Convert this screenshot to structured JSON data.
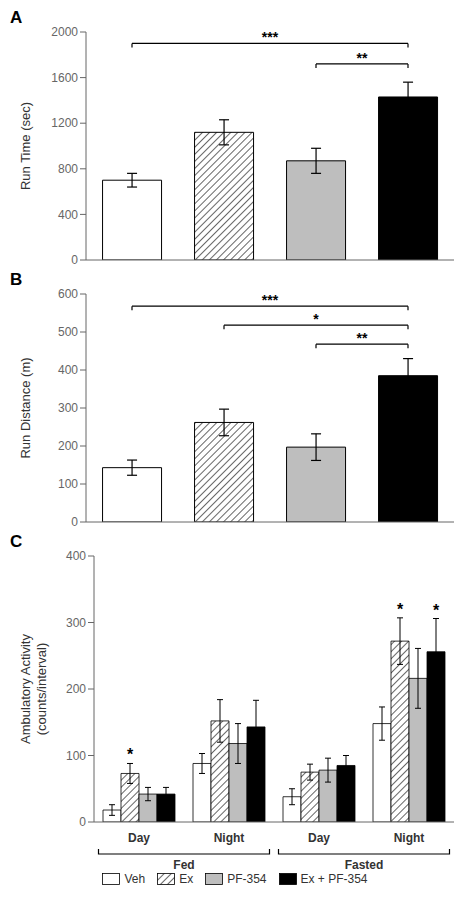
{
  "chart_data": [
    {
      "type": "bar",
      "title": "A",
      "y_label": "Run Time (sec)",
      "categories": [
        null,
        null,
        null,
        null
      ],
      "values": [
        700,
        1120,
        870,
        1430
      ],
      "errors": [
        60,
        110,
        110,
        130
      ],
      "colors": [
        "white",
        "white",
        "#bebebe",
        "black"
      ],
      "ylim": [
        0,
        2000
      ],
      "yticks": [
        0,
        400,
        800,
        1200,
        1600,
        2000
      ],
      "grid": false,
      "tick_labels": "y",
      "annotations": [
        {
          "text": "***",
          "x": [
            0,
            3
          ],
          "y": 1900
        },
        {
          "text": "**",
          "x": [
            2,
            3
          ],
          "y": 1720
        }
      ]
    },
    {
      "type": "bar",
      "title": "B",
      "y_label": "Run Distance (m)",
      "categories": [
        null,
        null,
        null,
        null
      ],
      "values": [
        143,
        262,
        197,
        385
      ],
      "errors": [
        20,
        35,
        35,
        45
      ],
      "colors": [
        "white",
        "white",
        "#bebebe",
        "black"
      ],
      "ylim": [
        0,
        600
      ],
      "yticks": [
        0,
        100,
        200,
        300,
        400,
        500,
        600
      ],
      "grid": false,
      "tick_labels": "y",
      "annotations": [
        {
          "text": "***",
          "x": [
            0,
            3
          ],
          "y": 568
        },
        {
          "text": "*",
          "x": [
            1,
            3
          ],
          "y": 518
        },
        {
          "text": "**",
          "x": [
            2,
            3
          ],
          "y": 468
        }
      ]
    },
    {
      "type": "bar",
      "title": "C",
      "y_label": "Ambulatory Activity\n(counts/interval)",
      "categories": [
        "Day",
        "Night",
        "Day",
        "Night"
      ],
      "series": [
        {
          "name": "Veh",
          "color": "white",
          "values": [
            18,
            88,
            38,
            148
          ],
          "errors": [
            8,
            15,
            12,
            25
          ]
        },
        {
          "name": "Ex",
          "color": "white",
          "values": [
            73,
            152,
            75,
            272
          ],
          "errors": [
            15,
            32,
            12,
            35
          ]
        },
        {
          "name": "PF-354",
          "color": "#bebebe",
          "values": [
            42,
            118,
            78,
            216
          ],
          "errors": [
            10,
            30,
            18,
            45
          ]
        },
        {
          "name": "Ex + PF-354",
          "color": "black",
          "values": [
            42,
            143,
            85,
            256
          ],
          "errors": [
            10,
            40,
            15,
            50
          ]
        }
      ],
      "ylim": [
        0,
        400
      ],
      "yticks": [
        0,
        100,
        200,
        300,
        400
      ],
      "grid": false,
      "legend": "bottom",
      "annotations": [
        {
          "text": "*",
          "series": "Ex",
          "x": 0
        },
        {
          "text": "*",
          "series": "Ex",
          "x": 3
        },
        {
          "text": "*",
          "series": "Ex + PF-354",
          "x": 3
        },
        {
          "text": "Fed",
          "x": [
            0,
            1
          ]
        },
        {
          "text": "Fasted",
          "x": [
            2,
            3
          ]
        }
      ]
    }
  ]
}
